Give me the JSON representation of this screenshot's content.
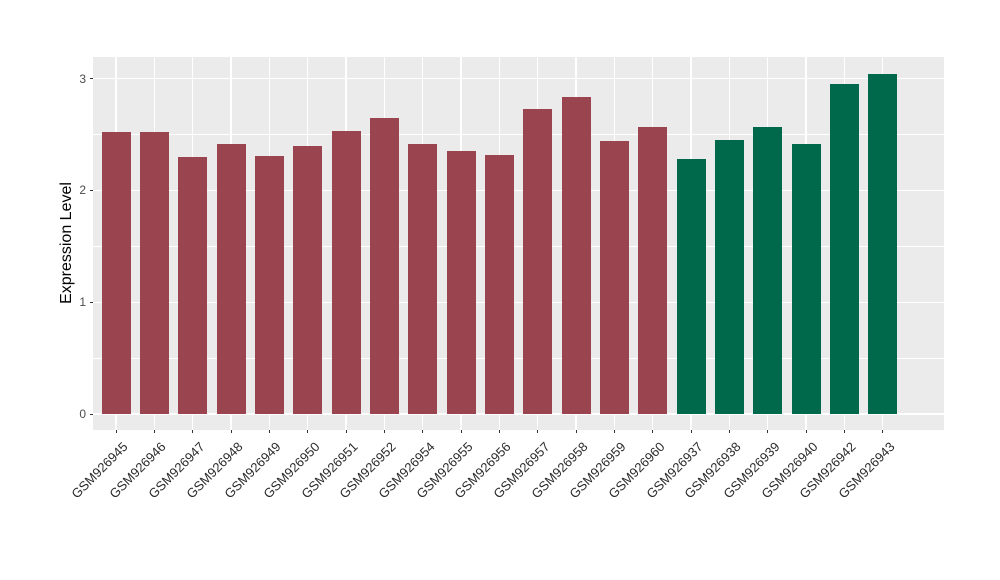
{
  "chart_data": {
    "type": "bar",
    "title": "",
    "xlabel": "",
    "ylabel": "Expression Level",
    "categories": [
      "GSM926945",
      "GSM926946",
      "GSM926947",
      "GSM926948",
      "GSM926949",
      "GSM926950",
      "GSM926951",
      "GSM926952",
      "GSM926954",
      "GSM926955",
      "GSM926956",
      "GSM926957",
      "GSM926958",
      "GSM926959",
      "GSM926960",
      "GSM926937",
      "GSM926938",
      "GSM926939",
      "GSM926940",
      "GSM926942",
      "GSM926943"
    ],
    "values": [
      2.52,
      2.52,
      2.3,
      2.42,
      2.31,
      2.4,
      2.53,
      2.65,
      2.42,
      2.35,
      2.32,
      2.73,
      2.84,
      2.44,
      2.57,
      2.28,
      2.45,
      2.57,
      2.42,
      2.95,
      3.04
    ],
    "group_of_bar": [
      "groupA",
      "groupA",
      "groupA",
      "groupA",
      "groupA",
      "groupA",
      "groupA",
      "groupA",
      "groupA",
      "groupA",
      "groupA",
      "groupA",
      "groupA",
      "groupA",
      "groupA",
      "groupB",
      "groupB",
      "groupB",
      "groupB",
      "groupB",
      "groupB"
    ],
    "group_colors": {
      "groupA": "#9A4450",
      "groupB": "#00694B"
    },
    "ytick_labels": [
      "0",
      "1",
      "2",
      "3"
    ],
    "ytick_values": [
      0,
      1,
      2,
      3
    ],
    "yminor_values": [
      0.5,
      1.5,
      2.5
    ],
    "ylim": [
      -0.15,
      3.2
    ],
    "panel_background": "#EBEBEB",
    "grid_color": "#FFFFFF",
    "x_tick_angle": 45,
    "legend": "none",
    "grid": "on"
  }
}
